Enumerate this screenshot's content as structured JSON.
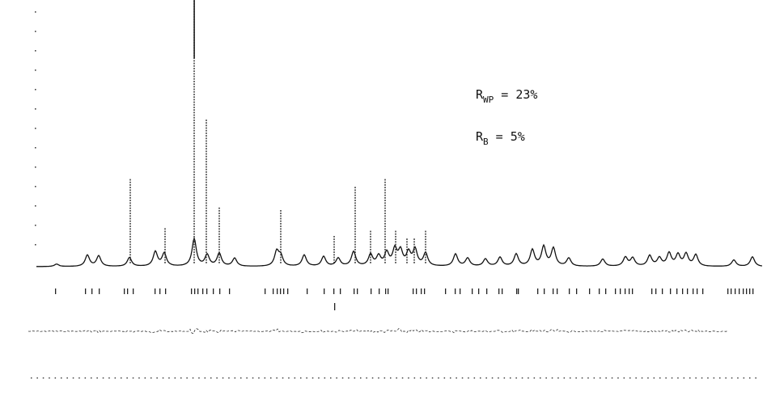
{
  "chart_data": {
    "type": "line",
    "title": "",
    "xlabel": "",
    "ylabel": "",
    "grid": false,
    "annotations": [
      {
        "symbol": "R",
        "subscript": "WP",
        "text": " = 23%"
      },
      {
        "symbol": "R",
        "subscript": "B",
        "text": " =   5%"
      }
    ],
    "series": [
      {
        "role": "calculated-profile",
        "peaks": [
          {
            "x": 70,
            "h": 3
          },
          {
            "x": 108,
            "h": 14
          },
          {
            "x": 122,
            "h": 13
          },
          {
            "x": 160,
            "h": 11
          },
          {
            "x": 192,
            "h": 18
          },
          {
            "x": 203,
            "h": 16
          },
          {
            "x": 240,
            "h": 34
          },
          {
            "x": 256,
            "h": 14
          },
          {
            "x": 271,
            "h": 16
          },
          {
            "x": 290,
            "h": 10
          },
          {
            "x": 342,
            "h": 18
          },
          {
            "x": 347,
            "h": 12
          },
          {
            "x": 376,
            "h": 14
          },
          {
            "x": 400,
            "h": 12
          },
          {
            "x": 418,
            "h": 10
          },
          {
            "x": 437,
            "h": 18
          },
          {
            "x": 458,
            "h": 14
          },
          {
            "x": 468,
            "h": 12
          },
          {
            "x": 478,
            "h": 16
          },
          {
            "x": 488,
            "h": 20
          },
          {
            "x": 495,
            "h": 18
          },
          {
            "x": 505,
            "h": 16
          },
          {
            "x": 513,
            "h": 20
          },
          {
            "x": 526,
            "h": 16
          },
          {
            "x": 563,
            "h": 15
          },
          {
            "x": 578,
            "h": 10
          },
          {
            "x": 600,
            "h": 9
          },
          {
            "x": 618,
            "h": 11
          },
          {
            "x": 638,
            "h": 15
          },
          {
            "x": 658,
            "h": 20
          },
          {
            "x": 672,
            "h": 24
          },
          {
            "x": 684,
            "h": 22
          },
          {
            "x": 703,
            "h": 10
          },
          {
            "x": 745,
            "h": 9
          },
          {
            "x": 773,
            "h": 11
          },
          {
            "x": 782,
            "h": 10
          },
          {
            "x": 803,
            "h": 13
          },
          {
            "x": 815,
            "h": 10
          },
          {
            "x": 827,
            "h": 16
          },
          {
            "x": 838,
            "h": 14
          },
          {
            "x": 848,
            "h": 15
          },
          {
            "x": 860,
            "h": 14
          },
          {
            "x": 907,
            "h": 8
          },
          {
            "x": 930,
            "h": 12
          }
        ]
      },
      {
        "role": "observed-points-peaks",
        "points": [
          {
            "x": 161,
            "y": 110
          },
          {
            "x": 204,
            "y": 50
          },
          {
            "x": 240,
            "y": 330
          },
          {
            "x": 255,
            "y": 185
          },
          {
            "x": 271,
            "y": 75
          },
          {
            "x": 347,
            "y": 70
          },
          {
            "x": 413,
            "y": 40
          },
          {
            "x": 439,
            "y": 100
          },
          {
            "x": 458,
            "y": 45
          },
          {
            "x": 476,
            "y": 110
          },
          {
            "x": 489,
            "y": 45
          },
          {
            "x": 503,
            "y": 35
          },
          {
            "x": 512,
            "y": 35
          },
          {
            "x": 526,
            "y": 45
          }
        ]
      },
      {
        "role": "reflection-markers",
        "x": [
          68,
          105,
          113,
          122,
          153,
          157,
          164,
          191,
          197,
          204,
          236,
          240,
          244,
          250,
          255,
          263,
          271,
          283,
          327,
          337,
          342,
          346,
          350,
          355,
          379,
          400,
          412,
          420,
          437,
          441,
          458,
          468,
          476,
          479,
          510,
          514,
          520,
          524,
          550,
          562,
          568,
          583,
          591,
          601,
          616,
          620,
          638,
          640,
          664,
          672,
          683,
          688,
          703,
          712,
          728,
          740,
          748,
          760,
          766,
          772,
          777,
          781,
          805,
          810,
          818,
          828,
          836,
          843,
          849,
          856,
          861,
          868,
          899,
          903,
          908,
          913,
          918,
          922,
          926,
          930
        ]
      }
    ]
  }
}
